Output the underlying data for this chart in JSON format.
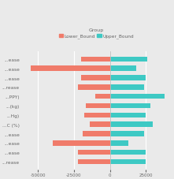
{
  "categories": [
    "...ease",
    "...ease",
    "...ease",
    "...rease",
    "...PPY)",
    "...(kg)",
    "...Hg)",
    "...C (%)",
    "...ease",
    "...ease",
    "...ease",
    "...rease"
  ],
  "lower_bound": [
    -20000,
    -55000,
    -20000,
    -22000,
    -10000,
    -17000,
    -18000,
    -14000,
    -19000,
    -40000,
    -22000,
    -22000
  ],
  "upper_bound": [
    26000,
    18000,
    25000,
    24000,
    38000,
    28000,
    25000,
    30000,
    24000,
    13000,
    25000,
    25000
  ],
  "lower_color": "#F07B6A",
  "upper_color": "#3EC9C4",
  "background_color": "#EAEAEA",
  "grid_color": "#FFFFFF",
  "legend_labels": [
    "Lower_Bound",
    "Upper_Bound"
  ],
  "legend_title": "Group",
  "xlim": [
    -62000,
    43000
  ],
  "xticks": [
    -50000,
    -25000,
    0,
    25000
  ],
  "xtick_labels": [
    "-50000",
    "-25000",
    "0",
    "25000"
  ],
  "bar_height": 0.55,
  "figsize": [
    2.21,
    2.28
  ],
  "dpi": 100,
  "label_fontsize": 4.2,
  "tick_fontsize": 4.0
}
